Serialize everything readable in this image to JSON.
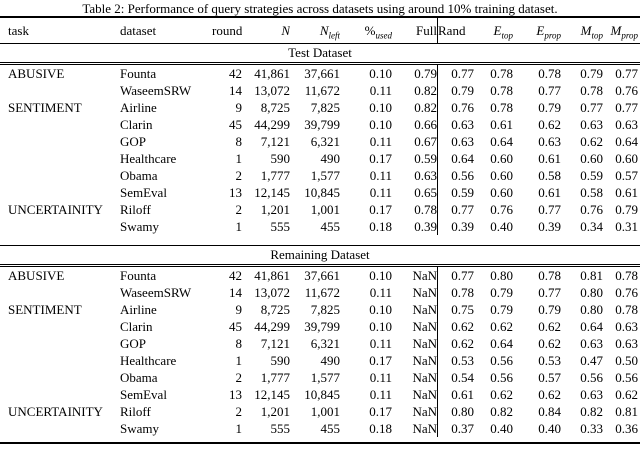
{
  "title": "Table 2: Performance of query strategies across datasets using around 10% training dataset.",
  "colors": {
    "text": "#000000",
    "background": "#ffffff",
    "rule": "#000000"
  },
  "header": {
    "task": "task",
    "dataset": "dataset",
    "round": "round",
    "n": "N",
    "n_left_base": "N",
    "n_left_sub": "left",
    "pct_base": "%",
    "pct_sub": "used",
    "full": "Full",
    "rand": "Rand",
    "e_top_base": "E",
    "e_top_sub": "top",
    "e_prop_base": "E",
    "e_prop_sub": "prop",
    "m_top_base": "M",
    "m_top_sub": "top",
    "m_prop_base": "M",
    "m_prop_sub": "prop"
  },
  "sections": [
    {
      "label": "Test Dataset",
      "rows": [
        {
          "task": "ABUSIVE",
          "dataset": "Founta",
          "round": "42",
          "n": "41,861",
          "n_left": "37,661",
          "used": "0.10",
          "full": "0.79",
          "rand": "0.77",
          "e_top": "0.78",
          "e_prop": "0.78",
          "m_top": "0.79",
          "m_prop": "0.77"
        },
        {
          "task": "",
          "dataset": "WaseemSRW",
          "round": "14",
          "n": "13,072",
          "n_left": "11,672",
          "used": "0.11",
          "full": "0.82",
          "rand": "0.79",
          "e_top": "0.78",
          "e_prop": "0.77",
          "m_top": "0.78",
          "m_prop": "0.76"
        },
        {
          "task": "SENTIMENT",
          "dataset": "Airline",
          "round": "9",
          "n": "8,725",
          "n_left": "7,825",
          "used": "0.10",
          "full": "0.82",
          "rand": "0.76",
          "e_top": "0.78",
          "e_prop": "0.79",
          "m_top": "0.77",
          "m_prop": "0.77"
        },
        {
          "task": "",
          "dataset": "Clarin",
          "round": "45",
          "n": "44,299",
          "n_left": "39,799",
          "used": "0.10",
          "full": "0.66",
          "rand": "0.63",
          "e_top": "0.61",
          "e_prop": "0.62",
          "m_top": "0.63",
          "m_prop": "0.63"
        },
        {
          "task": "",
          "dataset": "GOP",
          "round": "8",
          "n": "7,121",
          "n_left": "6,321",
          "used": "0.11",
          "full": "0.67",
          "rand": "0.63",
          "e_top": "0.64",
          "e_prop": "0.63",
          "m_top": "0.62",
          "m_prop": "0.64"
        },
        {
          "task": "",
          "dataset": "Healthcare",
          "round": "1",
          "n": "590",
          "n_left": "490",
          "used": "0.17",
          "full": "0.59",
          "rand": "0.64",
          "e_top": "0.60",
          "e_prop": "0.61",
          "m_top": "0.60",
          "m_prop": "0.60"
        },
        {
          "task": "",
          "dataset": "Obama",
          "round": "2",
          "n": "1,777",
          "n_left": "1,577",
          "used": "0.11",
          "full": "0.63",
          "rand": "0.56",
          "e_top": "0.60",
          "e_prop": "0.58",
          "m_top": "0.59",
          "m_prop": "0.57"
        },
        {
          "task": "",
          "dataset": "SemEval",
          "round": "13",
          "n": "12,145",
          "n_left": "10,845",
          "used": "0.11",
          "full": "0.65",
          "rand": "0.59",
          "e_top": "0.60",
          "e_prop": "0.61",
          "m_top": "0.58",
          "m_prop": "0.61"
        },
        {
          "task": "UNCERTAINITY",
          "dataset": "Riloff",
          "round": "2",
          "n": "1,201",
          "n_left": "1,001",
          "used": "0.17",
          "full": "0.78",
          "rand": "0.77",
          "e_top": "0.76",
          "e_prop": "0.77",
          "m_top": "0.76",
          "m_prop": "0.79"
        },
        {
          "task": "",
          "dataset": "Swamy",
          "round": "1",
          "n": "555",
          "n_left": "455",
          "used": "0.18",
          "full": "0.39",
          "rand": "0.39",
          "e_top": "0.40",
          "e_prop": "0.39",
          "m_top": "0.34",
          "m_prop": "0.31"
        }
      ]
    },
    {
      "label": "Remaining Dataset",
      "rows": [
        {
          "task": "ABUSIVE",
          "dataset": "Founta",
          "round": "42",
          "n": "41,861",
          "n_left": "37,661",
          "used": "0.10",
          "full": "NaN",
          "rand": "0.77",
          "e_top": "0.80",
          "e_prop": "0.78",
          "m_top": "0.81",
          "m_prop": "0.78"
        },
        {
          "task": "",
          "dataset": "WaseemSRW",
          "round": "14",
          "n": "13,072",
          "n_left": "11,672",
          "used": "0.11",
          "full": "NaN",
          "rand": "0.78",
          "e_top": "0.79",
          "e_prop": "0.77",
          "m_top": "0.80",
          "m_prop": "0.76"
        },
        {
          "task": "SENTIMENT",
          "dataset": "Airline",
          "round": "9",
          "n": "8,725",
          "n_left": "7,825",
          "used": "0.10",
          "full": "NaN",
          "rand": "0.75",
          "e_top": "0.79",
          "e_prop": "0.79",
          "m_top": "0.80",
          "m_prop": "0.78"
        },
        {
          "task": "",
          "dataset": "Clarin",
          "round": "45",
          "n": "44,299",
          "n_left": "39,799",
          "used": "0.10",
          "full": "NaN",
          "rand": "0.62",
          "e_top": "0.62",
          "e_prop": "0.62",
          "m_top": "0.64",
          "m_prop": "0.63"
        },
        {
          "task": "",
          "dataset": "GOP",
          "round": "8",
          "n": "7,121",
          "n_left": "6,321",
          "used": "0.11",
          "full": "NaN",
          "rand": "0.62",
          "e_top": "0.64",
          "e_prop": "0.62",
          "m_top": "0.63",
          "m_prop": "0.63"
        },
        {
          "task": "",
          "dataset": "Healthcare",
          "round": "1",
          "n": "590",
          "n_left": "490",
          "used": "0.17",
          "full": "NaN",
          "rand": "0.53",
          "e_top": "0.56",
          "e_prop": "0.53",
          "m_top": "0.47",
          "m_prop": "0.50"
        },
        {
          "task": "",
          "dataset": "Obama",
          "round": "2",
          "n": "1,777",
          "n_left": "1,577",
          "used": "0.11",
          "full": "NaN",
          "rand": "0.54",
          "e_top": "0.56",
          "e_prop": "0.57",
          "m_top": "0.56",
          "m_prop": "0.56"
        },
        {
          "task": "",
          "dataset": "SemEval",
          "round": "13",
          "n": "12,145",
          "n_left": "10,845",
          "used": "0.11",
          "full": "NaN",
          "rand": "0.61",
          "e_top": "0.62",
          "e_prop": "0.62",
          "m_top": "0.63",
          "m_prop": "0.62"
        },
        {
          "task": "UNCERTAINITY",
          "dataset": "Riloff",
          "round": "2",
          "n": "1,201",
          "n_left": "1,001",
          "used": "0.17",
          "full": "NaN",
          "rand": "0.80",
          "e_top": "0.82",
          "e_prop": "0.84",
          "m_top": "0.82",
          "m_prop": "0.81"
        },
        {
          "task": "",
          "dataset": "Swamy",
          "round": "1",
          "n": "555",
          "n_left": "455",
          "used": "0.18",
          "full": "NaN",
          "rand": "0.37",
          "e_top": "0.40",
          "e_prop": "0.40",
          "m_top": "0.33",
          "m_prop": "0.36"
        }
      ]
    }
  ]
}
